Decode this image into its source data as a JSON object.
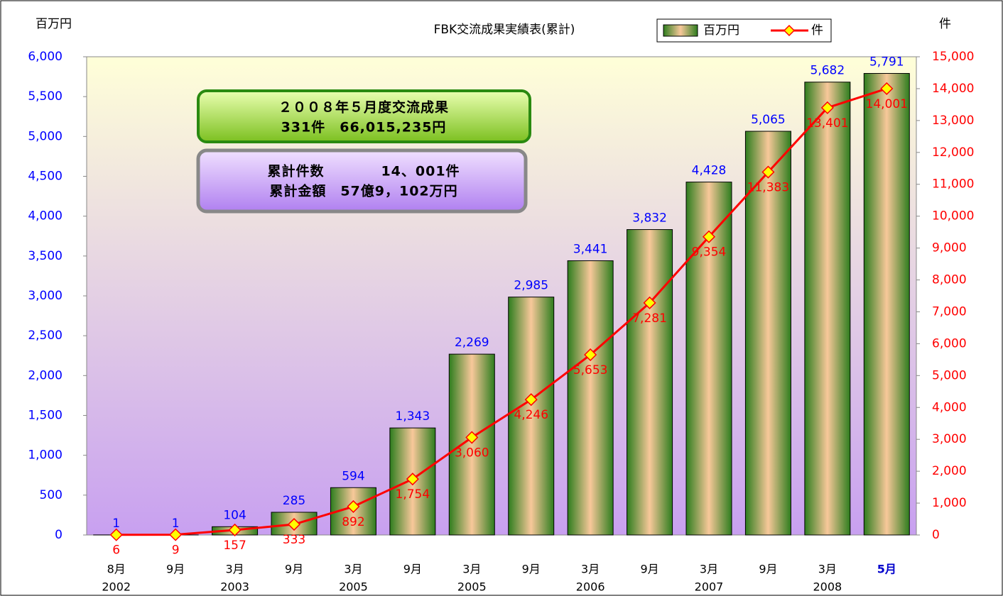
{
  "chart_data": {
    "type": "bar-line",
    "title": "FBK交流成果実績表(累計)",
    "y_label": "百万円",
    "y2_label": "件",
    "categories": [
      "8月",
      "9月",
      "3月",
      "9月",
      "3月",
      "9月",
      "3月",
      "9月",
      "3月",
      "9月",
      "3月",
      "9月",
      "3月",
      "5月"
    ],
    "years": [
      "2002",
      null,
      "2003",
      null,
      "2005",
      null,
      "2005",
      null,
      "2006",
      null,
      "2007",
      null,
      "2008",
      null
    ],
    "series": [
      {
        "name": "百万円",
        "type": "bar",
        "color": "#2e7d1e",
        "axis": "y",
        "values": [
          1,
          1,
          104,
          285,
          594,
          1343,
          2269,
          2985,
          3441,
          3832,
          4428,
          5065,
          5682,
          5791
        ],
        "value_labels": [
          "1",
          "1",
          "104",
          "285",
          "594",
          "1,343",
          "2,269",
          "2,985",
          "3,441",
          "3,832",
          "4,428",
          "5,065",
          "5,682",
          "5,791"
        ]
      },
      {
        "name": "件",
        "type": "line",
        "color": "#ff0000",
        "axis": "y2",
        "values": [
          6,
          9,
          157,
          333,
          892,
          1754,
          3060,
          4246,
          5653,
          7281,
          9354,
          11383,
          13401,
          14001
        ],
        "value_labels": [
          "6",
          "9",
          "157",
          "333",
          "892",
          "1,754",
          "3,060",
          "4,246",
          "5,653",
          "7,281",
          "9,354",
          "11,383",
          "13,401",
          "14,001"
        ]
      }
    ],
    "ylim": [
      0,
      6000
    ],
    "yticks": [
      0,
      500,
      {
        "value": 1000,
        "label": "1,000"
      },
      {
        "value": 1500,
        "label": "1,500"
      },
      {
        "value": 2000,
        "label": "2,000"
      },
      {
        "value": 2500,
        "label": "2,500"
      },
      {
        "value": 3000,
        "label": "3,000"
      },
      {
        "value": 3500,
        "label": "3,500"
      },
      {
        "value": 4000,
        "label": "4,000"
      },
      {
        "value": 4500,
        "label": "4,500"
      },
      {
        "value": 5000,
        "label": "5,000"
      },
      {
        "value": 5500,
        "label": "5,500"
      },
      {
        "value": 6000,
        "label": "6,000"
      }
    ],
    "y2lim": [
      0,
      15000
    ],
    "y2ticks": [
      0,
      {
        "value": 1000,
        "label": "1,000"
      },
      {
        "value": 2000,
        "label": "2,000"
      },
      {
        "value": 3000,
        "label": "3,000"
      },
      {
        "value": 4000,
        "label": "4,000"
      },
      {
        "value": 5000,
        "label": "5,000"
      },
      {
        "value": 6000,
        "label": "6,000"
      },
      {
        "value": 7000,
        "label": "7,000"
      },
      {
        "value": 8000,
        "label": "8,000"
      },
      {
        "value": 9000,
        "label": "9,000"
      },
      {
        "value": 10000,
        "label": "10,000"
      },
      {
        "value": 11000,
        "label": "11,000"
      },
      {
        "value": 12000,
        "label": "12,000"
      },
      {
        "value": 13000,
        "label": "13,000"
      },
      {
        "value": 14000,
        "label": "14,000"
      },
      {
        "value": 15000,
        "label": "15,000"
      }
    ],
    "annotations": [
      "２００８年５月度交流成果",
      "331件　66,015,235円",
      "累計件数　　　　14、001件",
      "累計金額　57億9，102万円"
    ]
  }
}
